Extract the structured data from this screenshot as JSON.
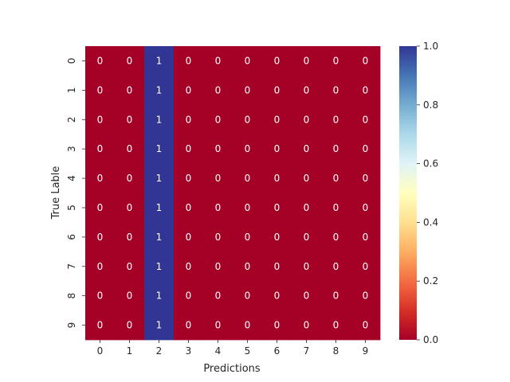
{
  "chart_data": {
    "type": "heatmap",
    "title": "",
    "xlabel": "Predictions",
    "ylabel": "True Lable",
    "x_categories": [
      "0",
      "1",
      "2",
      "3",
      "4",
      "5",
      "6",
      "7",
      "8",
      "9"
    ],
    "y_categories": [
      "0",
      "1",
      "2",
      "3",
      "4",
      "5",
      "6",
      "7",
      "8",
      "9"
    ],
    "values": [
      [
        0,
        0,
        1,
        0,
        0,
        0,
        0,
        0,
        0,
        0
      ],
      [
        0,
        0,
        1,
        0,
        0,
        0,
        0,
        0,
        0,
        0
      ],
      [
        0,
        0,
        1,
        0,
        0,
        0,
        0,
        0,
        0,
        0
      ],
      [
        0,
        0,
        1,
        0,
        0,
        0,
        0,
        0,
        0,
        0
      ],
      [
        0,
        0,
        1,
        0,
        0,
        0,
        0,
        0,
        0,
        0
      ],
      [
        0,
        0,
        1,
        0,
        0,
        0,
        0,
        0,
        0,
        0
      ],
      [
        0,
        0,
        1,
        0,
        0,
        0,
        0,
        0,
        0,
        0
      ],
      [
        0,
        0,
        1,
        0,
        0,
        0,
        0,
        0,
        0,
        0
      ],
      [
        0,
        0,
        1,
        0,
        0,
        0,
        0,
        0,
        0,
        0
      ],
      [
        0,
        0,
        1,
        0,
        0,
        0,
        0,
        0,
        0,
        0
      ]
    ],
    "annotated": true,
    "colormap": "RdYlBu",
    "colormap_stops": [
      "#a50026",
      "#d73027",
      "#f46d43",
      "#fdae61",
      "#fee090",
      "#ffffbf",
      "#e0f3f8",
      "#abd9e9",
      "#74add1",
      "#4575b4",
      "#313695"
    ],
    "vmin": 0.0,
    "vmax": 1.0,
    "colorbar_ticks": [
      "0.0",
      "0.2",
      "0.4",
      "0.6",
      "0.8",
      "1.0"
    ],
    "cell_text_color": "#ffffff",
    "grid": false
  }
}
